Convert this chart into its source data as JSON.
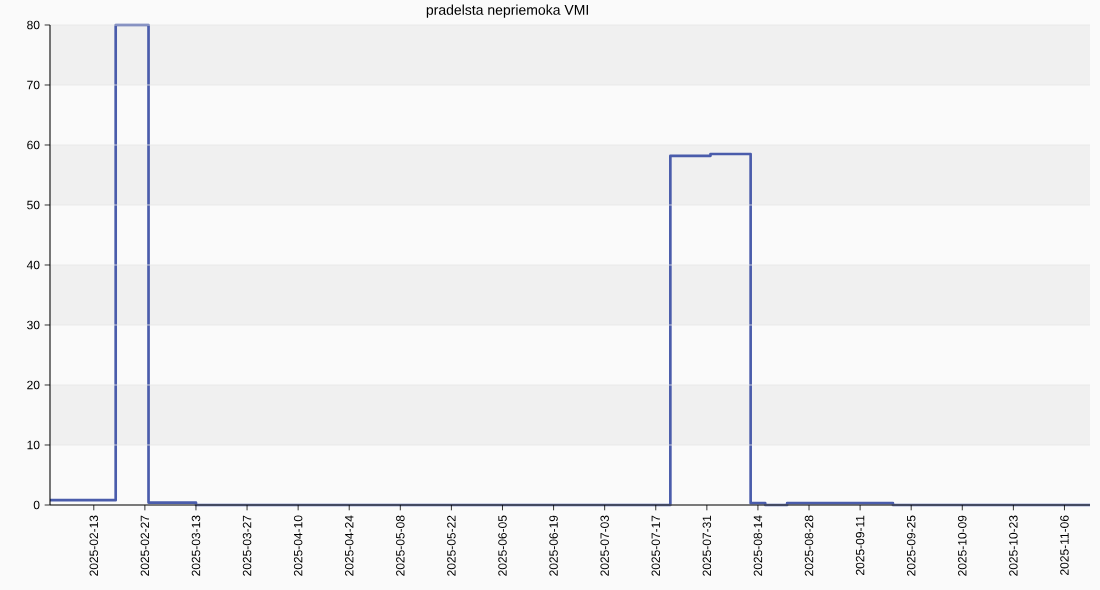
{
  "chart_data": {
    "type": "step",
    "title": "pradelsta nepriemoka VMI",
    "x": [
      "2025-02-01",
      "2025-02-19",
      "2025-02-28",
      "2025-03-13",
      "2025-07-21",
      "2025-08-01",
      "2025-08-12",
      "2025-08-16",
      "2025-08-22",
      "2025-09-20",
      "2025-11-13"
    ],
    "values": [
      0.8,
      80,
      0.4,
      0,
      58.2,
      58.5,
      0.3,
      0,
      0.3,
      0,
      0
    ],
    "color": "#4a5cab",
    "xlim": [
      "2025-02-01",
      "2025-11-13"
    ],
    "xticks": [
      "2025-02-13",
      "2025-02-27",
      "2025-03-13",
      "2025-03-27",
      "2025-04-10",
      "2025-04-24",
      "2025-05-08",
      "2025-05-22",
      "2025-06-05",
      "2025-06-19",
      "2025-07-03",
      "2025-07-17",
      "2025-07-31",
      "2025-08-14",
      "2025-08-28",
      "2025-09-11",
      "2025-09-25",
      "2025-10-09",
      "2025-10-23",
      "2025-11-06"
    ],
    "ylim": [
      0,
      80
    ],
    "yticks": [
      0,
      10,
      20,
      30,
      40,
      50,
      60,
      70,
      80
    ],
    "grid": "y"
  }
}
